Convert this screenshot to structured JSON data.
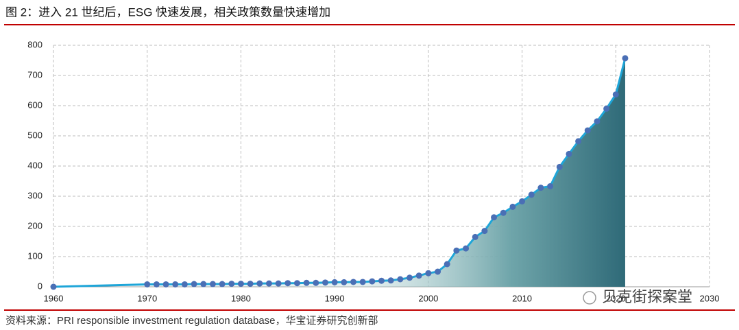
{
  "chart_data": {
    "type": "line",
    "title": "图 2：进入 21 世纪后，ESG 快速发展，相关政策数量快速增加",
    "source": "资料来源：PRI responsible investment regulation database，华宝证券研究创新部",
    "watermark": "贝克街探案堂",
    "x": [
      1960,
      1970,
      1971,
      1972,
      1973,
      1974,
      1975,
      1976,
      1977,
      1978,
      1979,
      1980,
      1981,
      1982,
      1983,
      1984,
      1985,
      1986,
      1987,
      1988,
      1989,
      1990,
      1991,
      1992,
      1993,
      1994,
      1995,
      1996,
      1997,
      1998,
      1999,
      2000,
      2001,
      2002,
      2003,
      2004,
      2005,
      2006,
      2007,
      2008,
      2009,
      2010,
      2011,
      2012,
      2013,
      2014,
      2015,
      2016,
      2017,
      2018,
      2019,
      2020,
      2021
    ],
    "series": [
      {
        "name": "ESG policies",
        "color": "#1ea5d8",
        "marker_color": "#4a6fb5",
        "values": [
          0,
          8,
          8,
          8,
          8,
          8,
          9,
          9,
          9,
          9,
          10,
          10,
          10,
          11,
          11,
          11,
          12,
          12,
          13,
          13,
          14,
          15,
          15,
          16,
          16,
          18,
          20,
          21,
          25,
          30,
          37,
          45,
          50,
          75,
          120,
          127,
          165,
          185,
          230,
          245,
          265,
          283,
          305,
          328,
          333,
          397,
          440,
          482,
          518,
          548,
          590,
          637,
          757
        ]
      }
    ],
    "xlim": [
      1960,
      2030
    ],
    "xticks": [
      1960,
      1970,
      1980,
      1990,
      2000,
      2010,
      2020,
      2030
    ],
    "ylim": [
      0,
      800
    ],
    "yticks": [
      0,
      100,
      200,
      300,
      400,
      500,
      600,
      700,
      800
    ],
    "grid": true
  }
}
